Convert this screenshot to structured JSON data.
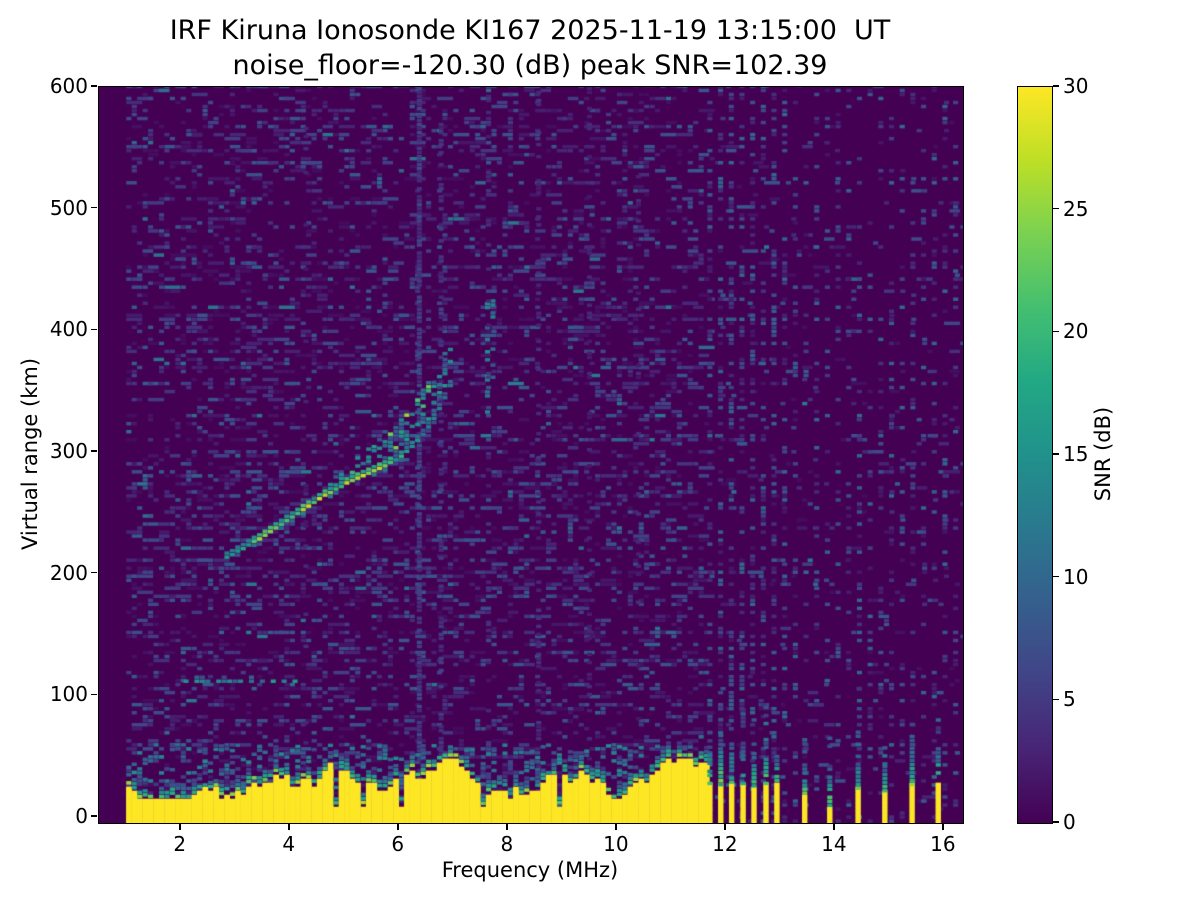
{
  "figure": {
    "title_line1": "IRF Kiruna Ionosonde KI167 2025-11-19 13:15:00  UT",
    "title_line2": "noise_floor=-120.30 (dB) peak SNR=102.39",
    "background": "#ffffff"
  },
  "axes": {
    "xlabel": "Frequency (MHz)",
    "ylabel": "Virtual range (km)",
    "x_min": 0.5,
    "x_max": 16.35,
    "y_min": -5,
    "y_max": 600,
    "x_ticks": [
      2,
      4,
      6,
      8,
      10,
      12,
      14,
      16
    ],
    "y_ticks": [
      0,
      100,
      200,
      300,
      400,
      500,
      600
    ]
  },
  "colorbar": {
    "label": "SNR (dB)",
    "min": 0,
    "max": 30,
    "ticks": [
      0,
      5,
      10,
      15,
      20,
      25,
      30
    ],
    "stops": [
      [
        0,
        "#440154"
      ],
      [
        0.1,
        "#482475"
      ],
      [
        0.2,
        "#414487"
      ],
      [
        0.3,
        "#355f8d"
      ],
      [
        0.4,
        "#2a788e"
      ],
      [
        0.5,
        "#21918c"
      ],
      [
        0.6,
        "#22a884"
      ],
      [
        0.7,
        "#44bf70"
      ],
      [
        0.8,
        "#7ad151"
      ],
      [
        0.9,
        "#bddf26"
      ],
      [
        1,
        "#fde725"
      ]
    ]
  },
  "chart_data": {
    "type": "heatmap",
    "title": "IRF Kiruna Ionosonde KI167 2025-11-19 13:15:00  UT",
    "subtitle": "noise_floor=-120.30 (dB) peak SNR=102.39",
    "station": "IRF Kiruna Ionosonde KI167",
    "timestamp_ut": "2025-11-19 13:15:00",
    "noise_floor_db": -120.3,
    "peak_snr_db": 102.39,
    "xlabel": "Frequency (MHz)",
    "ylabel": "Virtual range (km)",
    "value_label": "SNR (dB)",
    "value_range": [
      0,
      30
    ],
    "x_range_mhz": [
      0.5,
      16.35
    ],
    "y_range_km": [
      -5,
      600
    ],
    "legend_position": "right-colorbar",
    "grid": false,
    "features": {
      "grid": {
        "f_start": 1.0,
        "f_step": 0.1,
        "r_step": 3.3
      },
      "speckle": {
        "split_freq": 11.58,
        "density_low": 0.26,
        "density_high": 0.045,
        "run_chance": 0.3,
        "max_db": 7.5,
        "bright_chance": 0.05,
        "bright_db": 13
      },
      "clutter": {
        "f_start": 1.0,
        "f_end": 11.62,
        "base_km": 22,
        "min_km": 12,
        "max_km": 46,
        "notch_chance": 0.07,
        "speckle_top_km": 58
      },
      "rfi_bars": [
        [
          11.66,
          26,
          58
        ],
        [
          11.86,
          25,
          62
        ],
        [
          12.06,
          27,
          55
        ],
        [
          12.27,
          26,
          60
        ],
        [
          12.47,
          24,
          55
        ],
        [
          12.69,
          26,
          62
        ],
        [
          12.89,
          25,
          50
        ],
        [
          13.4,
          18,
          42
        ],
        [
          13.86,
          8,
          40
        ],
        [
          14.38,
          22,
          45
        ],
        [
          14.87,
          20,
          42
        ],
        [
          15.37,
          25,
          58
        ],
        [
          15.85,
          28,
          55
        ]
      ],
      "periodic_columns": {
        "f_start": 11.66,
        "f_end": 16.32,
        "spacing": 0.196,
        "density_near": 0.4,
        "density_far": 0.2,
        "split_freq": 13.05,
        "max_db": 9
      },
      "stripes": [
        [
          6.33,
          0.82,
          7,
          0,
          600
        ],
        [
          6.73,
          0.42,
          6,
          0,
          600
        ],
        [
          7.58,
          0.45,
          15,
          328,
          425
        ],
        [
          7.68,
          0.32,
          13,
          350,
          430
        ],
        [
          7.6,
          0.2,
          5,
          0,
          600
        ],
        [
          8.52,
          0.26,
          5,
          0,
          600
        ],
        [
          9.45,
          0.2,
          4,
          0,
          600
        ],
        [
          10.35,
          0.17,
          4,
          0,
          600
        ],
        [
          4.25,
          0.18,
          4,
          0,
          600
        ]
      ],
      "echo_trace": {
        "points": [
          [
            2.8,
            212
          ],
          [
            2.9,
            214
          ],
          [
            3.0,
            217
          ],
          [
            3.1,
            219
          ],
          [
            3.2,
            222
          ],
          [
            3.3,
            225
          ],
          [
            3.4,
            227
          ],
          [
            3.5,
            230
          ],
          [
            3.6,
            233
          ],
          [
            3.7,
            236
          ],
          [
            3.8,
            239
          ],
          [
            3.9,
            242
          ],
          [
            4.0,
            245
          ],
          [
            4.1,
            248
          ],
          [
            4.2,
            251
          ],
          [
            4.3,
            254
          ],
          [
            4.4,
            257
          ],
          [
            4.5,
            260
          ],
          [
            4.6,
            263
          ],
          [
            4.7,
            265
          ],
          [
            4.8,
            268
          ],
          [
            4.9,
            270
          ],
          [
            5.0,
            273
          ],
          [
            5.1,
            275
          ],
          [
            5.2,
            277
          ],
          [
            5.3,
            279
          ],
          [
            5.4,
            281
          ],
          [
            5.5,
            283
          ],
          [
            5.6,
            285
          ],
          [
            5.7,
            287
          ],
          [
            5.8,
            290
          ],
          [
            5.9,
            292
          ],
          [
            6.0,
            295
          ],
          [
            6.1,
            299
          ],
          [
            6.2,
            303
          ],
          [
            6.3,
            308
          ],
          [
            6.4,
            313
          ],
          [
            6.5,
            319
          ],
          [
            6.6,
            326
          ],
          [
            6.7,
            334
          ],
          [
            6.8,
            343
          ],
          [
            6.9,
            353
          ]
        ],
        "spread_start_f": 4.2,
        "spread_max_km": 44,
        "spread_density": 0.42
      },
      "dashed_line": {
        "r_km": 110,
        "f_start": 2.05,
        "f_end": 4.1,
        "db": 14
      }
    }
  }
}
